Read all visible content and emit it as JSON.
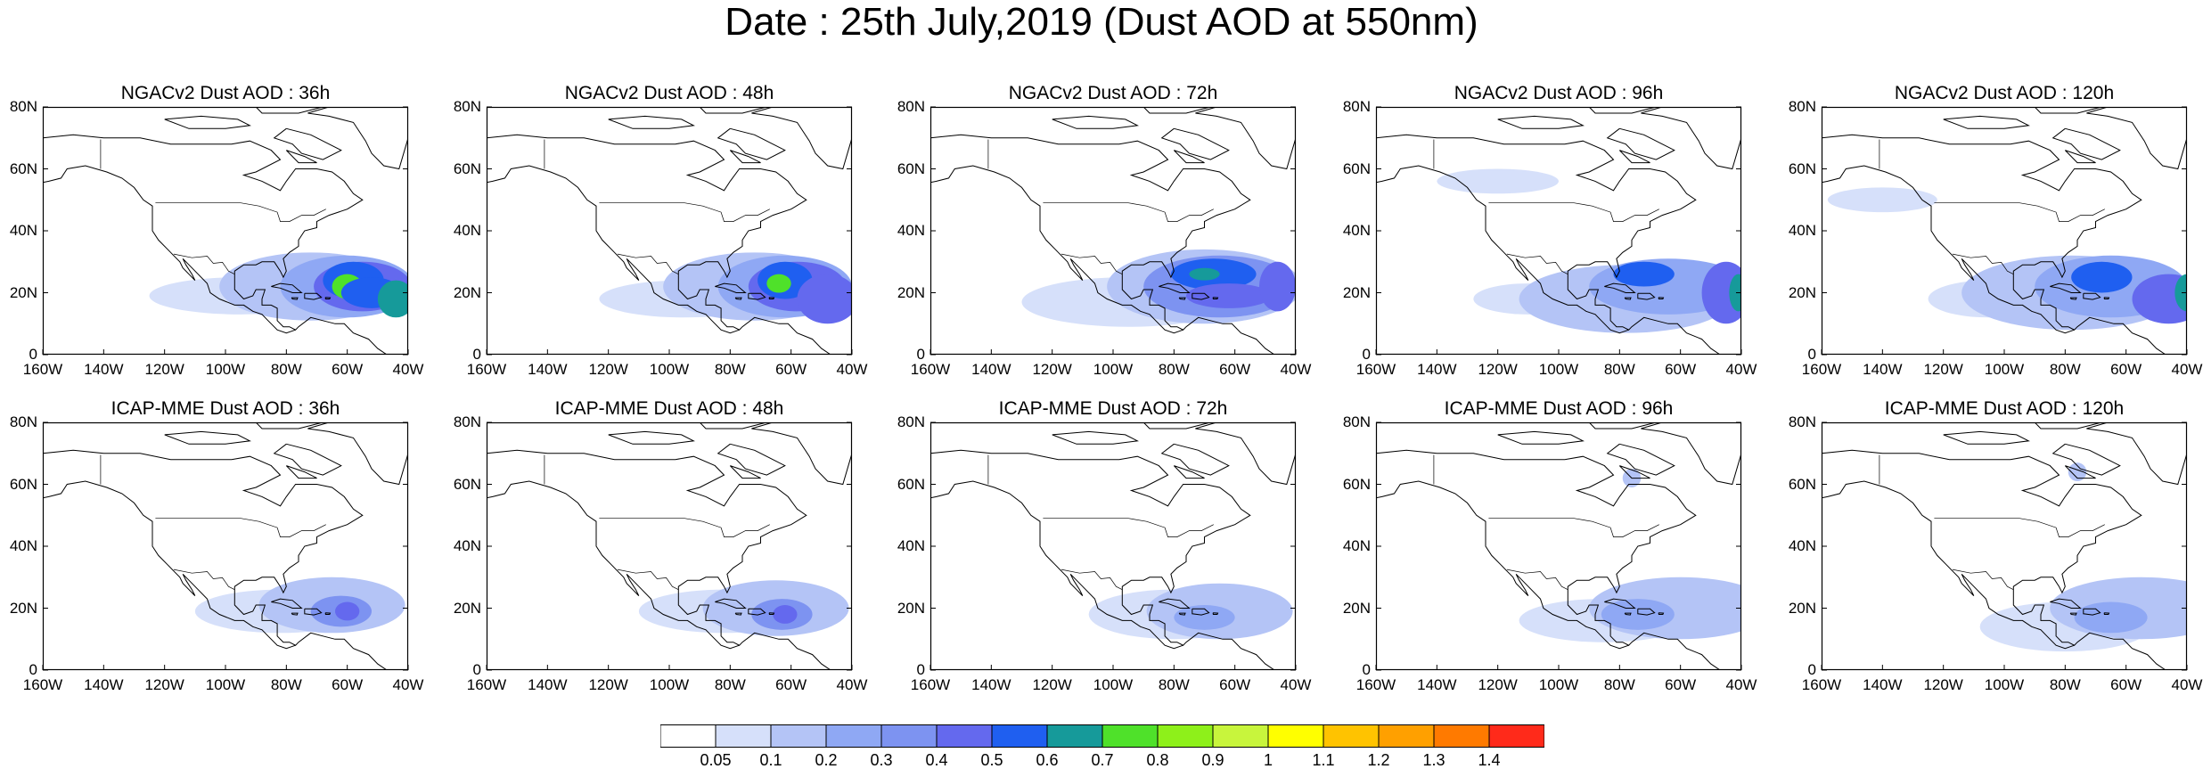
{
  "title": "Date : 25th July,2019 (Dust AOD at 550nm)",
  "lat_ticks": [
    "80N",
    "60N",
    "40N",
    "20N",
    "0"
  ],
  "lon_ticks": [
    "160W",
    "140W",
    "120W",
    "100W",
    "80W",
    "60W",
    "40W"
  ],
  "panels": [
    {
      "title": "NGACv2 Dust AOD : 36h",
      "model": "NGACv2",
      "lead": "36h",
      "row": 0,
      "col": 0
    },
    {
      "title": "NGACv2 Dust AOD : 48h",
      "model": "NGACv2",
      "lead": "48h",
      "row": 0,
      "col": 1
    },
    {
      "title": "NGACv2 Dust AOD : 72h",
      "model": "NGACv2",
      "lead": "72h",
      "row": 0,
      "col": 2
    },
    {
      "title": "NGACv2 Dust AOD : 96h",
      "model": "NGACv2",
      "lead": "96h",
      "row": 0,
      "col": 3
    },
    {
      "title": "NGACv2 Dust AOD : 120h",
      "model": "NGACv2",
      "lead": "120h",
      "row": 0,
      "col": 4
    },
    {
      "title": "ICAP-MME Dust AOD : 36h",
      "model": "ICAP-MME",
      "lead": "36h",
      "row": 1,
      "col": 0
    },
    {
      "title": "ICAP-MME Dust AOD : 48h",
      "model": "ICAP-MME",
      "lead": "48h",
      "row": 1,
      "col": 1
    },
    {
      "title": "ICAP-MME Dust AOD : 72h",
      "model": "ICAP-MME",
      "lead": "72h",
      "row": 1,
      "col": 2
    },
    {
      "title": "ICAP-MME Dust AOD : 96h",
      "model": "ICAP-MME",
      "lead": "96h",
      "row": 1,
      "col": 3
    },
    {
      "title": "ICAP-MME Dust AOD : 120h",
      "model": "ICAP-MME",
      "lead": "120h",
      "row": 1,
      "col": 4
    }
  ],
  "colorbar": {
    "labels": [
      "0.05",
      "0.1",
      "0.2",
      "0.3",
      "0.4",
      "0.5",
      "0.6",
      "0.7",
      "0.8",
      "0.9",
      "1",
      "1.1",
      "1.2",
      "1.3",
      "1.4"
    ],
    "colors": [
      "#ffffff",
      "#d6e0fa",
      "#b4c4f6",
      "#8fa8f4",
      "#7d93f1",
      "#6469ee",
      "#1f5ff0",
      "#169a9a",
      "#4fe12a",
      "#8ef01a",
      "#c8f53c",
      "#ffff00",
      "#ffc300",
      "#ffa000",
      "#ff7a00",
      "#ff2a1a"
    ]
  }
}
